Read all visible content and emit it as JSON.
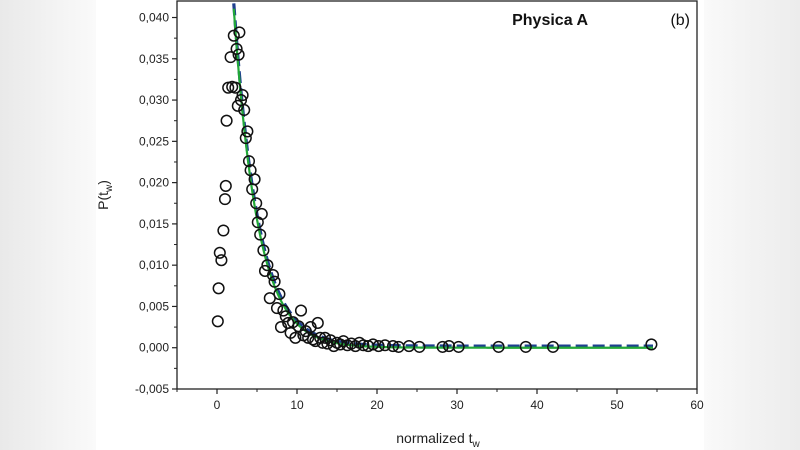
{
  "chart_data": {
    "type": "scatter",
    "panel_title": "Physica A",
    "panel_label": "(b)",
    "xlabel": "normalized t",
    "xlabel_sub": "w",
    "ylabel": "P(t",
    "ylabel_sub": "w",
    "ylabel_close": ")",
    "xlim": [
      -5,
      60
    ],
    "ylim": [
      -0.005,
      0.042
    ],
    "x_ticks": [
      0,
      10,
      20,
      30,
      40,
      50,
      60
    ],
    "x_tick_labels": [
      "0",
      "10",
      "20",
      "30",
      "40",
      "50",
      "60"
    ],
    "y_ticks": [
      -0.005,
      0.0,
      0.005,
      0.01,
      0.015,
      0.02,
      0.025,
      0.03,
      0.035,
      0.04
    ],
    "y_tick_labels": [
      "-0,005",
      "0,000",
      "0,005",
      "0,010",
      "0,015",
      "0,020",
      "0,025",
      "0,030",
      "0,035",
      "0,040"
    ],
    "series": [
      {
        "name": "data",
        "style": "open-circle",
        "points": [
          [
            0.1,
            0.0032
          ],
          [
            0.2,
            0.0072
          ],
          [
            0.35,
            0.0115
          ],
          [
            0.55,
            0.0106
          ],
          [
            0.8,
            0.0142
          ],
          [
            1.0,
            0.018
          ],
          [
            1.1,
            0.0196
          ],
          [
            1.2,
            0.0275
          ],
          [
            1.4,
            0.0315
          ],
          [
            1.7,
            0.0352
          ],
          [
            1.9,
            0.0316
          ],
          [
            2.1,
            0.0378
          ],
          [
            2.3,
            0.0315
          ],
          [
            2.45,
            0.0362
          ],
          [
            2.6,
            0.0293
          ],
          [
            2.7,
            0.0355
          ],
          [
            2.8,
            0.0382
          ],
          [
            3.0,
            0.03
          ],
          [
            3.2,
            0.0306
          ],
          [
            3.4,
            0.0288
          ],
          [
            3.6,
            0.0254
          ],
          [
            3.8,
            0.0262
          ],
          [
            4.0,
            0.0226
          ],
          [
            4.2,
            0.0215
          ],
          [
            4.4,
            0.0192
          ],
          [
            4.7,
            0.0204
          ],
          [
            4.9,
            0.0175
          ],
          [
            5.1,
            0.0152
          ],
          [
            5.4,
            0.0137
          ],
          [
            5.6,
            0.0162
          ],
          [
            5.8,
            0.0118
          ],
          [
            6.0,
            0.0093
          ],
          [
            6.3,
            0.01
          ],
          [
            6.6,
            0.006
          ],
          [
            7.0,
            0.0088
          ],
          [
            7.2,
            0.008
          ],
          [
            7.5,
            0.0048
          ],
          [
            7.8,
            0.0065
          ],
          [
            8.0,
            0.0025
          ],
          [
            8.3,
            0.0045
          ],
          [
            8.6,
            0.0038
          ],
          [
            8.9,
            0.003
          ],
          [
            9.2,
            0.0018
          ],
          [
            9.5,
            0.0031
          ],
          [
            9.8,
            0.0012
          ],
          [
            10.2,
            0.0026
          ],
          [
            10.5,
            0.0045
          ],
          [
            10.8,
            0.0015
          ],
          [
            11.1,
            0.002
          ],
          [
            11.4,
            0.0012
          ],
          [
            11.7,
            0.0025
          ],
          [
            12.0,
            0.001
          ],
          [
            12.3,
            0.0008
          ],
          [
            12.6,
            0.003
          ],
          [
            12.9,
            0.0012
          ],
          [
            13.2,
            0.0006
          ],
          [
            13.5,
            0.0012
          ],
          [
            13.8,
            0.0005
          ],
          [
            14.2,
            0.0009
          ],
          [
            14.6,
            0.0002
          ],
          [
            15.0,
            0.0006
          ],
          [
            15.4,
            0.0004
          ],
          [
            15.8,
            0.0008
          ],
          [
            16.3,
            0.0003
          ],
          [
            16.8,
            0.0005
          ],
          [
            17.3,
            0.0002
          ],
          [
            17.8,
            0.0006
          ],
          [
            18.3,
            0.0003
          ],
          [
            18.9,
            0.0002
          ],
          [
            19.5,
            0.0004
          ],
          [
            20.2,
            0.0002
          ],
          [
            21.0,
            0.0003
          ],
          [
            22.0,
            0.0002
          ],
          [
            22.7,
            0.0001
          ],
          [
            24.0,
            0.0002
          ],
          [
            25.3,
            0.0001
          ],
          [
            28.2,
            0.0001
          ],
          [
            29.0,
            0.0002
          ],
          [
            30.2,
            0.0001
          ],
          [
            35.2,
            0.0001
          ],
          [
            38.6,
            0.0001
          ],
          [
            42.0,
            0.0001
          ],
          [
            54.3,
            0.0004
          ]
        ]
      },
      {
        "name": "fit-dashed",
        "style": "dashed-line",
        "color": "#1e3f8f",
        "function": "a*exp(-b*x)+c",
        "params": {
          "a": 0.083,
          "b": 0.33,
          "c": 0.0002
        },
        "x_range": [
          2.1,
          54.5
        ]
      },
      {
        "name": "fit-solid",
        "style": "solid-line",
        "color": "#22a838",
        "function": "a*exp(-b*x)+c",
        "params": {
          "a": 0.083,
          "b": 0.335,
          "c": 0.0
        },
        "x_range": [
          2.1,
          54.5
        ]
      }
    ]
  }
}
